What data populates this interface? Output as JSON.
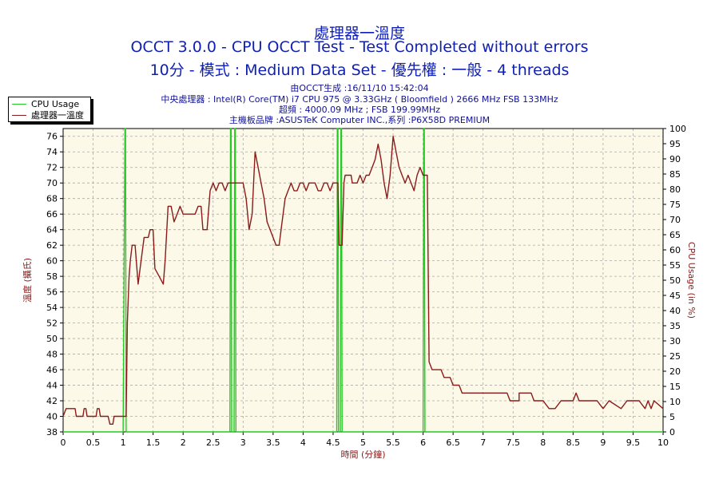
{
  "chart_data": {
    "type": "line",
    "title_main": "處理器一溫度",
    "title_test": "OCCT 3.0.0 - CPU OCCT Test - Test Completed without errors",
    "title_params": "10分 - 模式 : Medium Data Set - 優先權 : 一般 - 4 threads",
    "info_lines": [
      "由OCCT生成 :16/11/10 15:42:04",
      "中央處理器 : Intel(R) Core(TM) i7 CPU 975 @ 3.33GHz ( Bloomfield ) 2666 MHz FSB 133MHz",
      "超頻 : 4000.09 MHz ; FSB 199.99MHz",
      "主機板品牌 :ASUSTeK Computer INC.,系列 :P6X58D PREMIUM"
    ],
    "xlabel": "時間 (分鐘)",
    "ylabel_left": "溫度 (攝氏)",
    "ylabel_right": "CPU Usage (in %)",
    "xlim": [
      0,
      10
    ],
    "ylim_left": [
      38,
      77
    ],
    "ylim_right": [
      0,
      100
    ],
    "x_ticks": [
      "0",
      "0.5",
      "1",
      "1.5",
      "2",
      "2.5",
      "3",
      "3.5",
      "4",
      "4.5",
      "5",
      "5.5",
      "6",
      "6.5",
      "7",
      "7.5",
      "8",
      "8.5",
      "9",
      "9.5",
      "10"
    ],
    "y_left_ticks": [
      "38",
      "40",
      "42",
      "44",
      "46",
      "48",
      "50",
      "52",
      "54",
      "56",
      "58",
      "60",
      "62",
      "64",
      "66",
      "68",
      "70",
      "72",
      "74",
      "76"
    ],
    "y_right_ticks": [
      "0",
      "5",
      "10",
      "15",
      "20",
      "25",
      "30",
      "35",
      "40",
      "45",
      "50",
      "55",
      "60",
      "65",
      "70",
      "75",
      "80",
      "85",
      "90",
      "95",
      "100"
    ],
    "grid": true,
    "legend": "top-left",
    "series": [
      {
        "name": "CPU Usage",
        "axis": "right",
        "color": "#22cc22",
        "points": [
          [
            0,
            0
          ],
          [
            1.0,
            0
          ],
          [
            1.03,
            100
          ],
          [
            1.04,
            100
          ],
          [
            1.05,
            0
          ],
          [
            2.78,
            0
          ],
          [
            2.79,
            100
          ],
          [
            2.8,
            100
          ],
          [
            2.81,
            0
          ],
          [
            2.85,
            0
          ],
          [
            2.86,
            100
          ],
          [
            2.87,
            100
          ],
          [
            2.88,
            0
          ],
          [
            4.56,
            0
          ],
          [
            4.57,
            100
          ],
          [
            4.58,
            100
          ],
          [
            4.59,
            0
          ],
          [
            4.62,
            0
          ],
          [
            4.63,
            100
          ],
          [
            4.64,
            100
          ],
          [
            4.65,
            0
          ],
          [
            6.0,
            0
          ],
          [
            6.01,
            100
          ],
          [
            6.02,
            100
          ],
          [
            6.03,
            0
          ],
          [
            10,
            0
          ]
        ]
      },
      {
        "name": "處理器一溫度",
        "axis": "left",
        "color": "#8b1a1a",
        "points": [
          [
            0,
            40
          ],
          [
            0.05,
            41
          ],
          [
            0.2,
            41
          ],
          [
            0.22,
            40
          ],
          [
            0.33,
            40
          ],
          [
            0.35,
            41
          ],
          [
            0.38,
            41
          ],
          [
            0.4,
            40
          ],
          [
            0.55,
            40
          ],
          [
            0.57,
            41
          ],
          [
            0.6,
            41
          ],
          [
            0.62,
            40
          ],
          [
            0.75,
            40
          ],
          [
            0.78,
            39
          ],
          [
            0.83,
            39
          ],
          [
            0.85,
            40
          ],
          [
            1.05,
            40
          ],
          [
            1.07,
            52
          ],
          [
            1.1,
            58
          ],
          [
            1.12,
            60
          ],
          [
            1.15,
            62
          ],
          [
            1.2,
            62
          ],
          [
            1.25,
            57
          ],
          [
            1.3,
            60
          ],
          [
            1.35,
            63
          ],
          [
            1.42,
            63
          ],
          [
            1.45,
            64
          ],
          [
            1.5,
            64
          ],
          [
            1.53,
            59
          ],
          [
            1.6,
            58
          ],
          [
            1.67,
            57
          ],
          [
            1.7,
            60
          ],
          [
            1.75,
            67
          ],
          [
            1.8,
            67
          ],
          [
            1.85,
            65
          ],
          [
            1.9,
            66
          ],
          [
            1.95,
            67
          ],
          [
            2.0,
            66
          ],
          [
            2.1,
            66
          ],
          [
            2.2,
            66
          ],
          [
            2.25,
            67
          ],
          [
            2.3,
            67
          ],
          [
            2.33,
            64
          ],
          [
            2.4,
            64
          ],
          [
            2.45,
            69
          ],
          [
            2.5,
            70
          ],
          [
            2.55,
            69
          ],
          [
            2.6,
            70
          ],
          [
            2.65,
            70
          ],
          [
            2.7,
            69
          ],
          [
            2.75,
            70
          ],
          [
            3.0,
            70
          ],
          [
            3.05,
            68
          ],
          [
            3.1,
            64
          ],
          [
            3.15,
            66
          ],
          [
            3.2,
            74
          ],
          [
            3.25,
            72
          ],
          [
            3.3,
            70
          ],
          [
            3.35,
            68
          ],
          [
            3.4,
            65
          ],
          [
            3.45,
            64
          ],
          [
            3.5,
            63
          ],
          [
            3.55,
            62
          ],
          [
            3.6,
            62
          ],
          [
            3.65,
            65
          ],
          [
            3.7,
            68
          ],
          [
            3.75,
            69
          ],
          [
            3.8,
            70
          ],
          [
            3.85,
            69
          ],
          [
            3.9,
            69
          ],
          [
            3.95,
            70
          ],
          [
            4.0,
            70
          ],
          [
            4.05,
            69
          ],
          [
            4.1,
            70
          ],
          [
            4.2,
            70
          ],
          [
            4.25,
            69
          ],
          [
            4.3,
            69
          ],
          [
            4.35,
            70
          ],
          [
            4.4,
            70
          ],
          [
            4.45,
            69
          ],
          [
            4.5,
            70
          ],
          [
            4.58,
            70
          ],
          [
            4.6,
            62
          ],
          [
            4.65,
            62
          ],
          [
            4.68,
            70
          ],
          [
            4.7,
            71
          ],
          [
            4.8,
            71
          ],
          [
            4.82,
            70
          ],
          [
            4.9,
            70
          ],
          [
            4.95,
            71
          ],
          [
            5.0,
            70
          ],
          [
            5.05,
            71
          ],
          [
            5.1,
            71
          ],
          [
            5.15,
            72
          ],
          [
            5.2,
            73
          ],
          [
            5.25,
            75
          ],
          [
            5.3,
            73
          ],
          [
            5.35,
            70
          ],
          [
            5.4,
            68
          ],
          [
            5.45,
            71
          ],
          [
            5.5,
            76
          ],
          [
            5.55,
            74
          ],
          [
            5.6,
            72
          ],
          [
            5.65,
            71
          ],
          [
            5.7,
            70
          ],
          [
            5.75,
            71
          ],
          [
            5.8,
            70
          ],
          [
            5.85,
            69
          ],
          [
            5.9,
            71
          ],
          [
            5.95,
            72
          ],
          [
            6.0,
            71
          ],
          [
            6.07,
            71
          ],
          [
            6.1,
            47
          ],
          [
            6.15,
            46
          ],
          [
            6.3,
            46
          ],
          [
            6.35,
            45
          ],
          [
            6.45,
            45
          ],
          [
            6.5,
            44
          ],
          [
            6.6,
            44
          ],
          [
            6.65,
            43
          ],
          [
            6.8,
            43
          ],
          [
            6.85,
            43
          ],
          [
            7.0,
            43
          ],
          [
            7.1,
            43
          ],
          [
            7.2,
            43
          ],
          [
            7.3,
            43
          ],
          [
            7.4,
            43
          ],
          [
            7.45,
            42
          ],
          [
            7.6,
            42
          ],
          [
            7.6,
            43
          ],
          [
            7.7,
            43
          ],
          [
            7.8,
            43
          ],
          [
            7.85,
            42
          ],
          [
            8.0,
            42
          ],
          [
            8.1,
            41
          ],
          [
            8.2,
            41
          ],
          [
            8.3,
            42
          ],
          [
            8.5,
            42
          ],
          [
            8.55,
            43
          ],
          [
            8.6,
            42
          ],
          [
            8.7,
            42
          ],
          [
            8.9,
            42
          ],
          [
            9.0,
            41
          ],
          [
            9.1,
            42
          ],
          [
            9.3,
            41
          ],
          [
            9.4,
            42
          ],
          [
            9.6,
            42
          ],
          [
            9.7,
            41
          ],
          [
            9.75,
            42
          ],
          [
            9.8,
            41
          ],
          [
            9.85,
            42
          ],
          [
            10,
            41
          ]
        ]
      }
    ]
  }
}
